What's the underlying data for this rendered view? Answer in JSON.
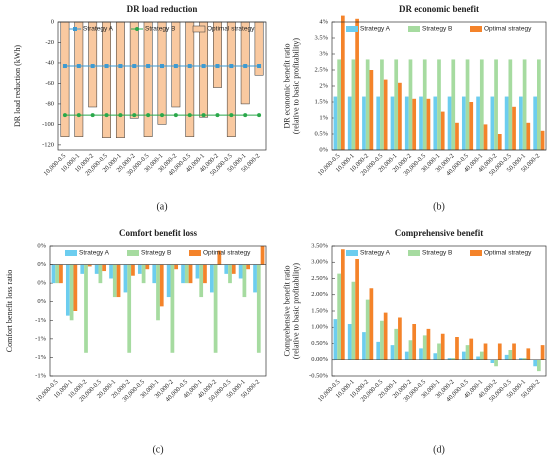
{
  "chart_data": [
    {
      "type": "combo",
      "title": "DR load reduction",
      "caption": "(a)",
      "ylabel": [
        "DR load reduction (kWh)"
      ],
      "categories": [
        "10,000-0.5",
        "10,000-1",
        "10,000-2",
        "20,000-0.5",
        "20,000-1",
        "20,000-2",
        "30,000-0.5",
        "30,000-1",
        "30,000-2",
        "40,000-0.5",
        "40,000-1",
        "40,000-2",
        "50,000-0.5",
        "50,000-1",
        "50,000-2"
      ],
      "series": [
        {
          "name": "Strategy A",
          "color": "#3d9ad1",
          "mark": "square",
          "values": [
            -43,
            -43,
            -43,
            -43,
            -43,
            -43,
            -43,
            -43,
            -43,
            -43,
            -43,
            -43,
            -43,
            -43,
            -43
          ]
        },
        {
          "name": "Strategy B",
          "color": "#2aa84a",
          "mark": "circle",
          "values": [
            -91,
            -91,
            -91,
            -91,
            -91,
            -91,
            -91,
            -91,
            -91,
            -91,
            -91,
            -91,
            -91,
            -91,
            -91
          ]
        },
        {
          "name": "Optimal strategy",
          "color": "#f9c9a0",
          "mark": "bar",
          "values": [
            -112,
            -112,
            -83,
            -113,
            -113,
            -94,
            -112,
            -100,
            -83,
            -112,
            -93,
            -64,
            -112,
            -80,
            -52
          ]
        }
      ],
      "ylim": [
        -125,
        0
      ],
      "yticks": [
        0,
        -20,
        -40,
        -60,
        -80,
        -100,
        -120
      ],
      "legend": "top"
    },
    {
      "type": "bar",
      "title": "DR economic benefit",
      "caption": "(b)",
      "ylabel": [
        "DR economic benefit ratio",
        "(relative to basic profitability)"
      ],
      "categories": [
        "10,000-0.5",
        "10,000-1",
        "10,000-2",
        "20,000-0.5",
        "20,000-1",
        "20,000-2",
        "30,000-0.5",
        "30,000-1",
        "30,000-2",
        "40,000-0.5",
        "40,000-1",
        "40,000-2",
        "50,000-0.5",
        "50,000-1",
        "50,000-2"
      ],
      "series": [
        {
          "name": "Strategy A",
          "color": "#6ccdef",
          "values": [
            1.67,
            1.67,
            1.67,
            1.67,
            1.67,
            1.67,
            1.67,
            1.67,
            1.67,
            1.67,
            1.67,
            1.67,
            1.67,
            1.67,
            1.67
          ]
        },
        {
          "name": "Strategy B",
          "color": "#a6dba0",
          "values": [
            2.83,
            2.83,
            2.83,
            2.83,
            2.83,
            2.83,
            2.83,
            2.83,
            2.83,
            2.83,
            2.83,
            2.83,
            2.83,
            2.83,
            2.83
          ]
        },
        {
          "name": "Optimal strategy",
          "color": "#f4832a",
          "values": [
            4.2,
            4.1,
            2.5,
            2.2,
            2.1,
            1.6,
            1.6,
            1.2,
            0.85,
            1.5,
            0.8,
            0.5,
            1.35,
            0.85,
            0.6
          ]
        }
      ],
      "ylim": [
        0,
        4
      ],
      "yticks": [
        {
          "value": 0,
          "label": "0%"
        },
        {
          "value": 0.5,
          "label": "0.5%"
        },
        {
          "value": 1,
          "label": "1%"
        },
        {
          "value": 1.5,
          "label": "1.5%"
        },
        {
          "value": 2,
          "label": "2%"
        },
        {
          "value": 2.5,
          "label": "2.5%"
        },
        {
          "value": 3,
          "label": "3%"
        },
        {
          "value": 3.5,
          "label": "3.5%"
        },
        {
          "value": 4,
          "label": "4%"
        }
      ],
      "legend": "top"
    },
    {
      "type": "bar",
      "title": "Comfort benefit loss",
      "caption": "(c)",
      "ylabel": [
        "Comfort benefit loss ratio"
      ],
      "categories": [
        "10,000-0.5",
        "10,000-1",
        "10,000-2",
        "20,000-0.5",
        "20,000-1",
        "20,000-2",
        "30,000-0.5",
        "30,000-1",
        "30,000-2",
        "40,000-0.5",
        "40,000-1",
        "40,000-2",
        "50,000-0.5",
        "50,000-1",
        "50,000-2"
      ],
      "series": [
        {
          "name": "Strategy A",
          "color": "#6ccdef",
          "values": [
            -0.2,
            -0.55,
            -0.1,
            -0.1,
            -0.15,
            -0.3,
            -0.1,
            -0.2,
            -0.35,
            -0.2,
            -0.15,
            -0.3,
            -0.1,
            -0.15,
            -0.3
          ]
        },
        {
          "name": "Strategy B",
          "color": "#a6dba0",
          "values": [
            -0.2,
            -0.6,
            -0.95,
            -0.2,
            -0.35,
            -0.95,
            -0.2,
            -0.6,
            -0.95,
            -0.2,
            -0.35,
            -0.95,
            -0.2,
            -0.35,
            -0.95
          ]
        },
        {
          "name": "Optimal strategy",
          "color": "#f4832a",
          "values": [
            -0.2,
            -0.5,
            -0.02,
            -0.07,
            -0.35,
            -0.12,
            -0.05,
            -0.45,
            -0.05,
            -0.2,
            -0.2,
            0.15,
            -0.1,
            -0.05,
            0.2
          ]
        }
      ],
      "ylim": [
        -1.2,
        0.2
      ],
      "yticks": [
        {
          "value": 0.2,
          "label": "0%"
        },
        {
          "value": 0,
          "label": "0%"
        },
        {
          "value": -0.2,
          "label": "0%"
        },
        {
          "value": -0.4,
          "label": "0%"
        },
        {
          "value": -0.6,
          "label": "-1%"
        },
        {
          "value": -0.8,
          "label": "-1%"
        },
        {
          "value": -1,
          "label": "-1%"
        },
        {
          "value": -1.2,
          "label": "-1%"
        }
      ],
      "legend": "top"
    },
    {
      "type": "bar",
      "title": "Comprehensive benefit",
      "caption": "(d)",
      "ylabel": [
        "Comprehensive benefit ratio",
        "(relative to basic profitability)"
      ],
      "categories": [
        "10,000-0.5",
        "10,000-1",
        "10,000-2",
        "20,000-0.5",
        "20,000-1",
        "20,000-2",
        "30,000-0.5",
        "30,000-1",
        "30,000-2",
        "40,000-0.5",
        "40,000-1",
        "40,000-2",
        "50,000-0.5",
        "50,000-1",
        "50,000-2"
      ],
      "series": [
        {
          "name": "Strategy A",
          "color": "#6ccdef",
          "values": [
            1.25,
            1.1,
            0.85,
            0.55,
            0.45,
            0.25,
            0.35,
            0.2,
            0.05,
            0.25,
            0.1,
            -0.1,
            0.15,
            0.05,
            -0.2
          ]
        },
        {
          "name": "Strategy B",
          "color": "#a6dba0",
          "values": [
            2.65,
            2.4,
            1.85,
            1.2,
            0.95,
            0.6,
            0.75,
            0.5,
            0.05,
            0.45,
            0.25,
            -0.2,
            0.3,
            0.05,
            -0.35
          ]
        },
        {
          "name": "Optimal strategy",
          "color": "#f4832a",
          "values": [
            3.4,
            3.1,
            2.2,
            1.45,
            1.3,
            1.1,
            0.95,
            0.8,
            0.7,
            0.65,
            0.5,
            0.5,
            0.5,
            0.35,
            0.45
          ]
        }
      ],
      "ylim": [
        -0.5,
        3.5
      ],
      "yticks": [
        {
          "value": -0.5,
          "label": "-0.50%"
        },
        {
          "value": 0,
          "label": "0.00%"
        },
        {
          "value": 0.5,
          "label": "0.50%"
        },
        {
          "value": 1,
          "label": "1.00%"
        },
        {
          "value": 1.5,
          "label": "1.50%"
        },
        {
          "value": 2,
          "label": "2.00%"
        },
        {
          "value": 2.5,
          "label": "2.50%"
        },
        {
          "value": 3,
          "label": "3.00%"
        },
        {
          "value": 3.5,
          "label": "3.50%"
        }
      ],
      "legend": "top"
    }
  ]
}
